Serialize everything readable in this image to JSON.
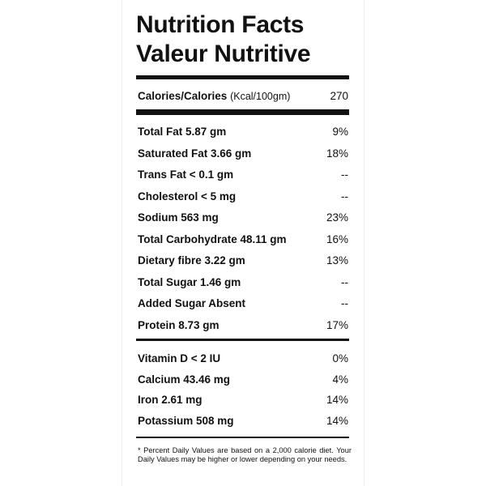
{
  "header": {
    "title_en": "Nutrition Facts",
    "title_fr": "Valeur Nutritive"
  },
  "calories": {
    "label": "Calories/Calories",
    "unit": "(Kcal/100gm)",
    "value": "270"
  },
  "nutrients": [
    {
      "label": "Total Fat 5.87 gm",
      "dv": "9%"
    },
    {
      "label": "Saturated Fat 3.66 gm",
      "dv": "18%"
    },
    {
      "label": "Trans Fat < 0.1 gm",
      "dv": "--"
    },
    {
      "label": "Cholesterol < 5 mg",
      "dv": "--"
    },
    {
      "label": "Sodium 563 mg",
      "dv": "23%"
    },
    {
      "label": "Total Carbohydrate 48.11 gm",
      "dv": "16%"
    },
    {
      "label": "Dietary fibre 3.22 gm",
      "dv": "13%"
    },
    {
      "label": "Total Sugar 1.46 gm",
      "dv": "--"
    },
    {
      "label": "Added Sugar Absent",
      "dv": "--"
    },
    {
      "label": "Protein 8.73 gm",
      "dv": "17%"
    }
  ],
  "vitamins": [
    {
      "label": "Vitamin D < 2 IU",
      "dv": "0%"
    },
    {
      "label": "Calcium 43.46 mg",
      "dv": "4%"
    },
    {
      "label": "Iron 2.61 mg",
      "dv": "14%"
    },
    {
      "label": "Potassium 508 mg",
      "dv": "14%"
    }
  ],
  "footnote": "* Percent Daily Values are based on a 2,000 calorie diet. Your Daily Values may be higher or lower depending on your needs."
}
